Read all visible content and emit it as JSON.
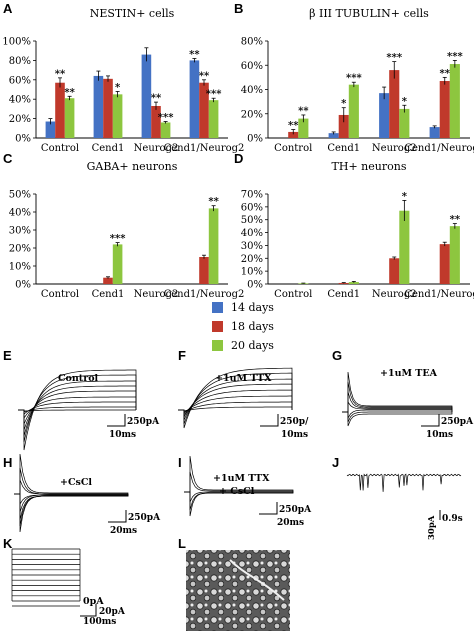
{
  "panels": {
    "A": "A",
    "B": "B",
    "C": "C",
    "D": "D",
    "E": "E",
    "F": "F",
    "G": "G",
    "H": "H",
    "I": "I",
    "J": "J",
    "K": "K",
    "L": "L"
  },
  "colors": {
    "days14": "#4472C4",
    "days18": "#C0392B",
    "days20": "#8DC63F"
  },
  "legend": [
    {
      "label": "14 days",
      "color": "#4472C4"
    },
    {
      "label": "18 days",
      "color": "#C0392B"
    },
    {
      "label": "20 days",
      "color": "#8DC63F"
    }
  ],
  "chart_data": [
    {
      "type": "bar",
      "panel": "A",
      "title": "NESTIN+ cells",
      "categories": [
        "Control",
        "Cend1",
        "Neurog2",
        "Cend1/Neurog2"
      ],
      "ylim": [
        0,
        100
      ],
      "yticks": [
        "0%",
        "20%",
        "40%",
        "60%",
        "80%",
        "100%"
      ],
      "series": [
        {
          "name": "14 days",
          "values": [
            17,
            64,
            86,
            80
          ]
        },
        {
          "name": "18 days",
          "values": [
            57,
            61,
            33,
            57
          ]
        },
        {
          "name": "20 days",
          "values": [
            41,
            45,
            16,
            39
          ]
        }
      ],
      "errors": [
        [
          3,
          5,
          7,
          2
        ],
        [
          5,
          3,
          4,
          3
        ],
        [
          2,
          3,
          1,
          2
        ]
      ],
      "significance": [
        [
          "",
          "",
          "",
          "**"
        ],
        [
          "**",
          "",
          "**",
          "**"
        ],
        [
          "**",
          "*",
          "***",
          "***"
        ]
      ]
    },
    {
      "type": "bar",
      "panel": "B",
      "title": "β III TUBULIN+ cells",
      "categories": [
        "Control",
        "Cend1",
        "Neurog2",
        "Cend1/Neurog2"
      ],
      "ylim": [
        0,
        80
      ],
      "yticks": [
        "0%",
        "20%",
        "40%",
        "60%",
        "80%"
      ],
      "series": [
        {
          "name": "14 days",
          "values": [
            0,
            4,
            37,
            9
          ]
        },
        {
          "name": "18 days",
          "values": [
            5,
            19,
            56,
            47
          ]
        },
        {
          "name": "20 days",
          "values": [
            16,
            44,
            24,
            61
          ]
        }
      ],
      "errors": [
        [
          0,
          1,
          5,
          1
        ],
        [
          2,
          6,
          7,
          3
        ],
        [
          3,
          2,
          3,
          3
        ]
      ],
      "significance": [
        [
          "",
          "",
          "",
          ""
        ],
        [
          "**",
          "*",
          "***",
          "**"
        ],
        [
          "**",
          "***",
          "*",
          "***"
        ]
      ]
    },
    {
      "type": "bar",
      "panel": "C",
      "title": "GABA+ neurons",
      "categories": [
        "Control",
        "Cend1",
        "Neurog2",
        "Cend1/Neurog2"
      ],
      "ylim": [
        0,
        50
      ],
      "yticks": [
        "0%",
        "10%",
        "20%",
        "30%",
        "40%",
        "50%"
      ],
      "series": [
        {
          "name": "14 days",
          "values": [
            0,
            0,
            0,
            0
          ]
        },
        {
          "name": "18 days",
          "values": [
            0,
            3.5,
            0,
            15
          ]
        },
        {
          "name": "20 days",
          "values": [
            0,
            22,
            0,
            42
          ]
        }
      ],
      "errors": [
        [
          0,
          0,
          0,
          0
        ],
        [
          0,
          0.5,
          0,
          1
        ],
        [
          0,
          1,
          0,
          1.5
        ]
      ],
      "significance": [
        [
          "",
          "",
          "",
          ""
        ],
        [
          "",
          "",
          "",
          ""
        ],
        [
          "",
          "***",
          "",
          "**"
        ]
      ]
    },
    {
      "type": "bar",
      "panel": "D",
      "title": "TH+ neurons",
      "categories": [
        "Control",
        "Cend1",
        "Neurog2",
        "Cend1/Neurog2"
      ],
      "ylim": [
        0,
        70
      ],
      "yticks": [
        "0%",
        "10%",
        "20%",
        "30%",
        "40%",
        "50%",
        "60%",
        "70%"
      ],
      "series": [
        {
          "name": "14 days",
          "values": [
            0,
            0,
            0,
            0
          ]
        },
        {
          "name": "18 days",
          "values": [
            0,
            0.8,
            20,
            31
          ]
        },
        {
          "name": "20 days",
          "values": [
            0.5,
            1.5,
            57,
            45
          ]
        }
      ],
      "errors": [
        [
          0,
          0,
          0,
          0
        ],
        [
          0,
          0.3,
          1,
          1.5
        ],
        [
          0.2,
          0.5,
          8,
          2
        ]
      ],
      "significance": [
        [
          "",
          "",
          "",
          ""
        ],
        [
          "",
          "",
          "",
          ""
        ],
        [
          "",
          "",
          "*",
          "**"
        ]
      ]
    }
  ],
  "traces": {
    "E": {
      "label": "Control",
      "scale_current": "250pA",
      "scale_time": "10ms"
    },
    "F": {
      "label": "+1uM TTX",
      "scale_current": "250p/",
      "scale_time": "10ms"
    },
    "G": {
      "label": "+1uM TEA",
      "scale_current": "250pA",
      "scale_time": "10ms"
    },
    "H": {
      "label": "+CsCl",
      "scale_current": "250pA",
      "scale_time": "20ms"
    },
    "I": {
      "label": "+1uM TTX",
      "label2": "+ CsCl",
      "scale_current": "250pA",
      "scale_time": "20ms"
    },
    "J": {
      "scale_current": "30pA",
      "scale_time": "0.9s"
    },
    "K": {
      "label": "0pA",
      "scale_current": "20pA",
      "scale_time": "100ms"
    }
  }
}
